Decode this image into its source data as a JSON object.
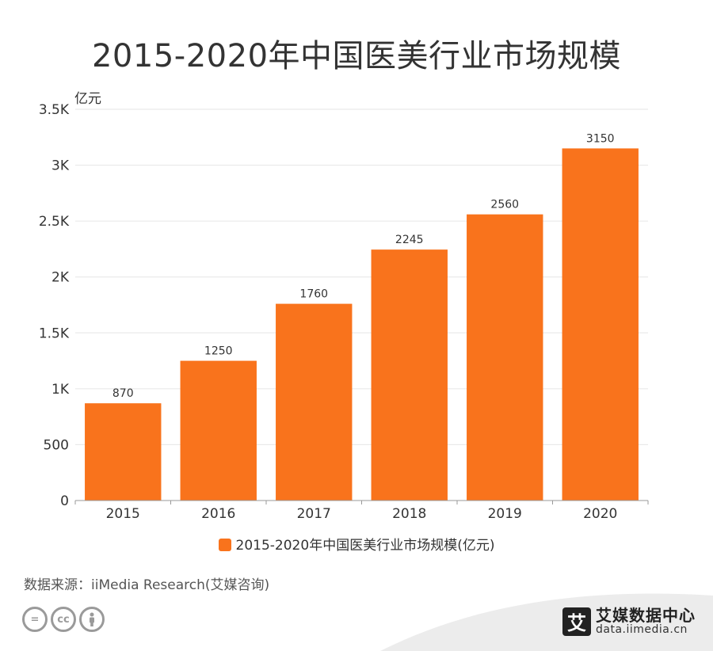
{
  "title": "2015-2020年中国医美行业市场规模",
  "chart_data": {
    "type": "bar",
    "title": "2015-2020年中国医美行业市场规模",
    "ylabel": "亿元",
    "xlabel": "",
    "categories": [
      "2015",
      "2016",
      "2017",
      "2018",
      "2019",
      "2020"
    ],
    "series": [
      {
        "name": "2015-2020年中国医美行业市场规模(亿元)",
        "values": [
          870,
          1250,
          1760,
          2245,
          2560,
          3150
        ],
        "color": "#f9731c"
      }
    ],
    "ylim": [
      0,
      3500
    ],
    "yticks": [
      0,
      500,
      1000,
      1500,
      2000,
      2500,
      3000,
      3500
    ],
    "ytick_labels": [
      "0",
      "500",
      "1K",
      "1.5K",
      "2K",
      "2.5K",
      "3K",
      "3.5K"
    ],
    "data_labels": [
      "870",
      "1250",
      "1760",
      "2245",
      "2560",
      "3150"
    ],
    "grid": true,
    "legend_position": "bottom"
  },
  "legend": {
    "label": "2015-2020年中国医美行业市场规模(亿元)",
    "color": "#f9731c"
  },
  "source": "数据来源：iiMedia Research(艾媒咨询)",
  "license_icons": [
    "=",
    "cc",
    "person-icon"
  ],
  "brand": {
    "logo_char": "艾",
    "name": "艾媒数据中心",
    "url": "data.iimedia.cn"
  }
}
